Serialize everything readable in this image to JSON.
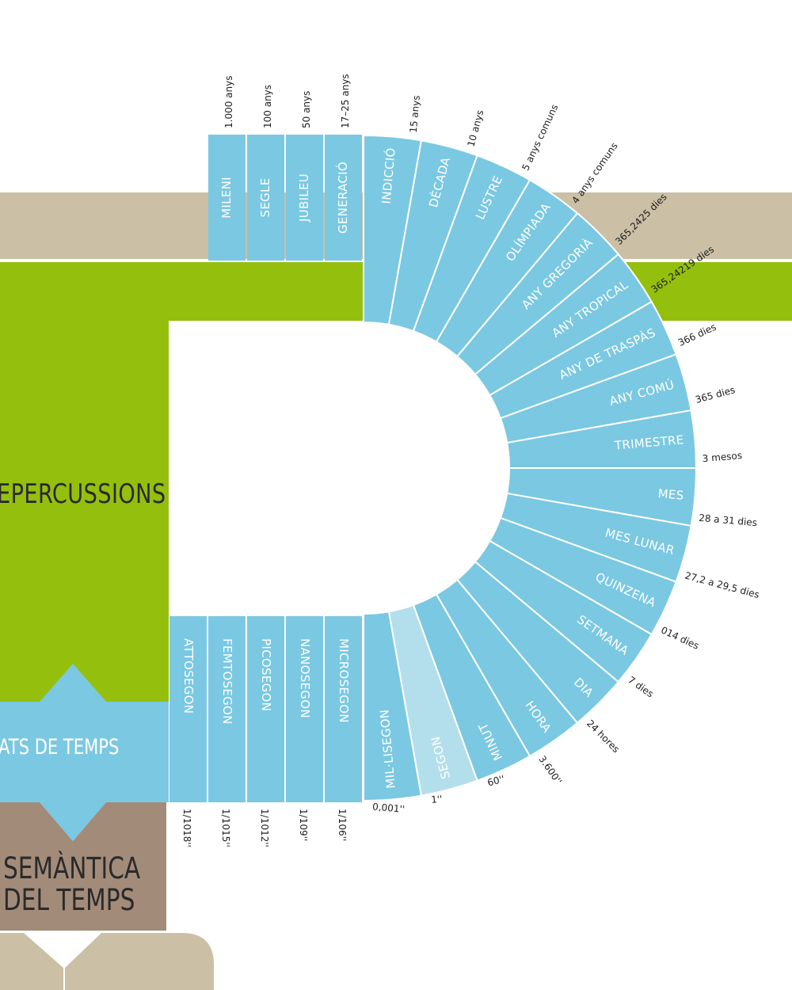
{
  "colors": {
    "tan": "#cbbfa5",
    "green": "#94bf0d",
    "blue": "#7bc8e2",
    "blue_light": "#b3dfec",
    "brown": "#a38b7a",
    "white": "#ffffff"
  },
  "sections": {
    "repercussions": "EPERCUSSIONS",
    "unitats": "ATS DE TEMPS",
    "semantica_line1": "SEMÀNTICA",
    "semantica_line2": "DEL TEMPS"
  },
  "top_units": [
    {
      "name": "MILENI",
      "value": "1.000 anys"
    },
    {
      "name": "SEGLE",
      "value": "100 anys"
    },
    {
      "name": "JUBILEU",
      "value": "50 anys"
    },
    {
      "name": "GENERACIÓ",
      "value": "17–25 anys"
    }
  ],
  "arc_units": [
    {
      "name": "INDICCIÓ",
      "value": "15 anys"
    },
    {
      "name": "DÈCADA",
      "value": "10 anys"
    },
    {
      "name": "LUSTRE",
      "value": "5 anys comuns"
    },
    {
      "name": "OLÍMPIADA",
      "value": "4 anys comuns"
    },
    {
      "name": "ANY GREGORIÀ",
      "value": "365,2425 dies"
    },
    {
      "name": "ANY TROPICAL",
      "value": "365,24219 dies"
    },
    {
      "name": "ANY DE TRASPÀS",
      "value": "366 dies"
    },
    {
      "name": "ANY COMÚ",
      "value": "365 dies"
    },
    {
      "name": "TRIMESTRE",
      "value": "3 mesos"
    },
    {
      "name": "MES",
      "value": "28 a 31 dies"
    },
    {
      "name": "MES LUNAR",
      "value": "27,2 a 29,5 dies"
    },
    {
      "name": "QUINZENA",
      "value": "014 dies"
    },
    {
      "name": "SETMANA",
      "value": "7 dies"
    },
    {
      "name": "DIA",
      "value": "24 hores"
    },
    {
      "name": "HORA",
      "value": "3.600''"
    },
    {
      "name": "MINUT",
      "value": "60''"
    },
    {
      "name": "SEGON",
      "value": "1''",
      "highlight": true
    },
    {
      "name": "MIL·LISEGON",
      "value": "0,001''"
    }
  ],
  "bottom_units": [
    {
      "name": "MICROSEGON",
      "value": "1/106''"
    },
    {
      "name": "NANOSEGON",
      "value": "1/109''"
    },
    {
      "name": "PICOSEGON",
      "value": "1/1012''"
    },
    {
      "name": "FEMTOSEGON",
      "value": "1/1015''"
    },
    {
      "name": "ATTOSEGON",
      "value": "1/1018''"
    }
  ]
}
